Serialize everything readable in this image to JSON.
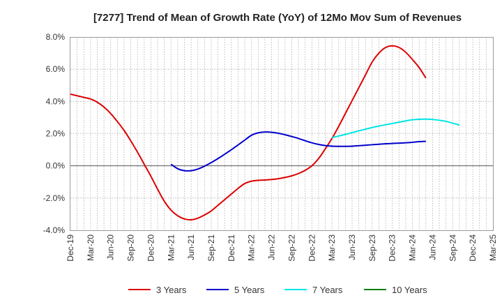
{
  "chart_data": {
    "type": "line",
    "title": "[7277]  Trend of Mean of Growth Rate (YoY) of 12Mo Mov Sum of Revenues",
    "xlabel": "",
    "ylabel": "",
    "ylim": [
      -4.0,
      8.0
    ],
    "y_ticks": [
      -4.0,
      -2.0,
      0.0,
      2.0,
      4.0,
      6.0,
      8.0
    ],
    "y_tick_labels": [
      "-4.0%",
      "-2.0%",
      "0.0%",
      "2.0%",
      "4.0%",
      "6.0%",
      "8.0%"
    ],
    "x_tick_labels": [
      "Dec-19",
      "Mar-20",
      "Jun-20",
      "Sep-20",
      "Dec-20",
      "Mar-21",
      "Jun-21",
      "Sep-21",
      "Dec-21",
      "Mar-22",
      "Jun-22",
      "Sep-22",
      "Dec-22",
      "Mar-23",
      "Jun-23",
      "Sep-23",
      "Dec-23",
      "Mar-24",
      "Jun-24",
      "Sep-24",
      "Dec-24",
      "Mar-25"
    ],
    "x_index_range": [
      0,
      63
    ],
    "grid": true,
    "legend_position": "bottom",
    "series": [
      {
        "name": "3 Years",
        "color": "#dd0000",
        "start_index": 0,
        "values": [
          4.45,
          4.35,
          4.25,
          4.15,
          3.95,
          3.65,
          3.25,
          2.75,
          2.2,
          1.55,
          0.85,
          0.1,
          -0.65,
          -1.45,
          -2.2,
          -2.75,
          -3.1,
          -3.3,
          -3.35,
          -3.25,
          -3.05,
          -2.8,
          -2.45,
          -2.1,
          -1.75,
          -1.4,
          -1.1,
          -0.95,
          -0.9,
          -0.88,
          -0.85,
          -0.8,
          -0.72,
          -0.62,
          -0.48,
          -0.28,
          0.0,
          0.45,
          1.05,
          1.7,
          2.45,
          3.25,
          4.05,
          4.85,
          5.65,
          6.45,
          7.0,
          7.35,
          7.45,
          7.35,
          7.05,
          6.6,
          6.1,
          5.45
        ]
      },
      {
        "name": "5 Years",
        "color": "#0000cc",
        "start_index": 15,
        "values": [
          0.1,
          -0.18,
          -0.3,
          -0.3,
          -0.2,
          -0.02,
          0.2,
          0.45,
          0.72,
          1.0,
          1.3,
          1.6,
          1.9,
          2.05,
          2.1,
          2.08,
          2.02,
          1.93,
          1.82,
          1.7,
          1.56,
          1.43,
          1.33,
          1.26,
          1.22,
          1.21,
          1.21,
          1.22,
          1.25,
          1.28,
          1.31,
          1.34,
          1.37,
          1.39,
          1.41,
          1.43,
          1.46,
          1.5,
          1.52
        ]
      },
      {
        "name": "7 Years",
        "color": "#00e5e5",
        "start_index": 39,
        "values": [
          1.75,
          1.85,
          1.95,
          2.06,
          2.17,
          2.28,
          2.38,
          2.47,
          2.55,
          2.63,
          2.71,
          2.79,
          2.86,
          2.89,
          2.9,
          2.88,
          2.83,
          2.76,
          2.65,
          2.53
        ]
      },
      {
        "name": "10 Years",
        "color": "#008000",
        "start_index": 0,
        "values": []
      }
    ]
  }
}
